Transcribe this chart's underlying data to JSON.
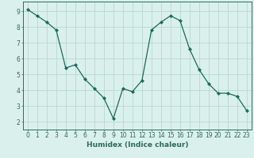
{
  "x": [
    0,
    1,
    2,
    3,
    4,
    5,
    6,
    7,
    8,
    9,
    10,
    11,
    12,
    13,
    14,
    15,
    16,
    17,
    18,
    19,
    20,
    21,
    22,
    23
  ],
  "y": [
    9.1,
    8.7,
    8.3,
    7.8,
    5.4,
    5.6,
    4.7,
    4.1,
    3.5,
    2.2,
    4.1,
    3.9,
    4.6,
    7.8,
    8.3,
    8.7,
    8.4,
    6.6,
    5.3,
    4.4,
    3.8,
    3.8,
    3.6,
    2.7
  ],
  "line_color": "#1a6b5a",
  "marker": "D",
  "marker_size": 2,
  "bg_color": "#daf0ec",
  "grid_color": "#b8d8d2",
  "xlabel": "Humidex (Indice chaleur)",
  "xlim": [
    -0.5,
    23.5
  ],
  "ylim": [
    1.5,
    9.6
  ],
  "yticks": [
    2,
    3,
    4,
    5,
    6,
    7,
    8,
    9
  ],
  "xticks": [
    0,
    1,
    2,
    3,
    4,
    5,
    6,
    7,
    8,
    9,
    10,
    11,
    12,
    13,
    14,
    15,
    16,
    17,
    18,
    19,
    20,
    21,
    22,
    23
  ],
  "tick_label_size": 5.5,
  "xlabel_size": 6.5,
  "axis_color": "#2a6b5a",
  "border_color": "#2a6b5a"
}
